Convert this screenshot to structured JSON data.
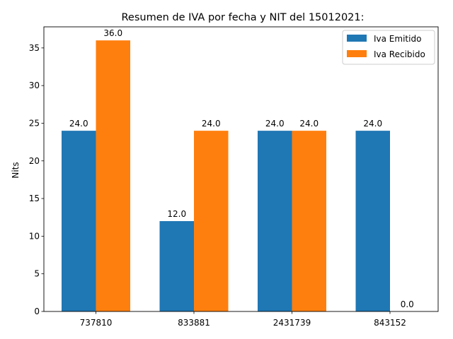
{
  "chart_data": {
    "type": "bar",
    "title": "Resumen de IVA por fecha y NIT del 15012021:",
    "xlabel": "",
    "ylabel": "Nits",
    "categories": [
      "737810",
      "833881",
      "2431739",
      "843152"
    ],
    "series": [
      {
        "name": "Iva Emitido",
        "values": [
          24.0,
          12.0,
          24.0,
          24.0
        ],
        "color": "#1f77b4"
      },
      {
        "name": "Iva Recibido",
        "values": [
          36.0,
          24.0,
          24.0,
          0.0
        ],
        "color": "#ff7f0e"
      }
    ],
    "data_labels": [
      [
        "24.0",
        "12.0",
        "24.0",
        "24.0"
      ],
      [
        "36.0",
        "24.0",
        "24.0",
        "0.0"
      ]
    ],
    "ylim": [
      0,
      37.8
    ],
    "yticks": [
      "0",
      "5",
      "10",
      "15",
      "20",
      "25",
      "30",
      "35"
    ],
    "grid": false,
    "legend": "top-right"
  }
}
